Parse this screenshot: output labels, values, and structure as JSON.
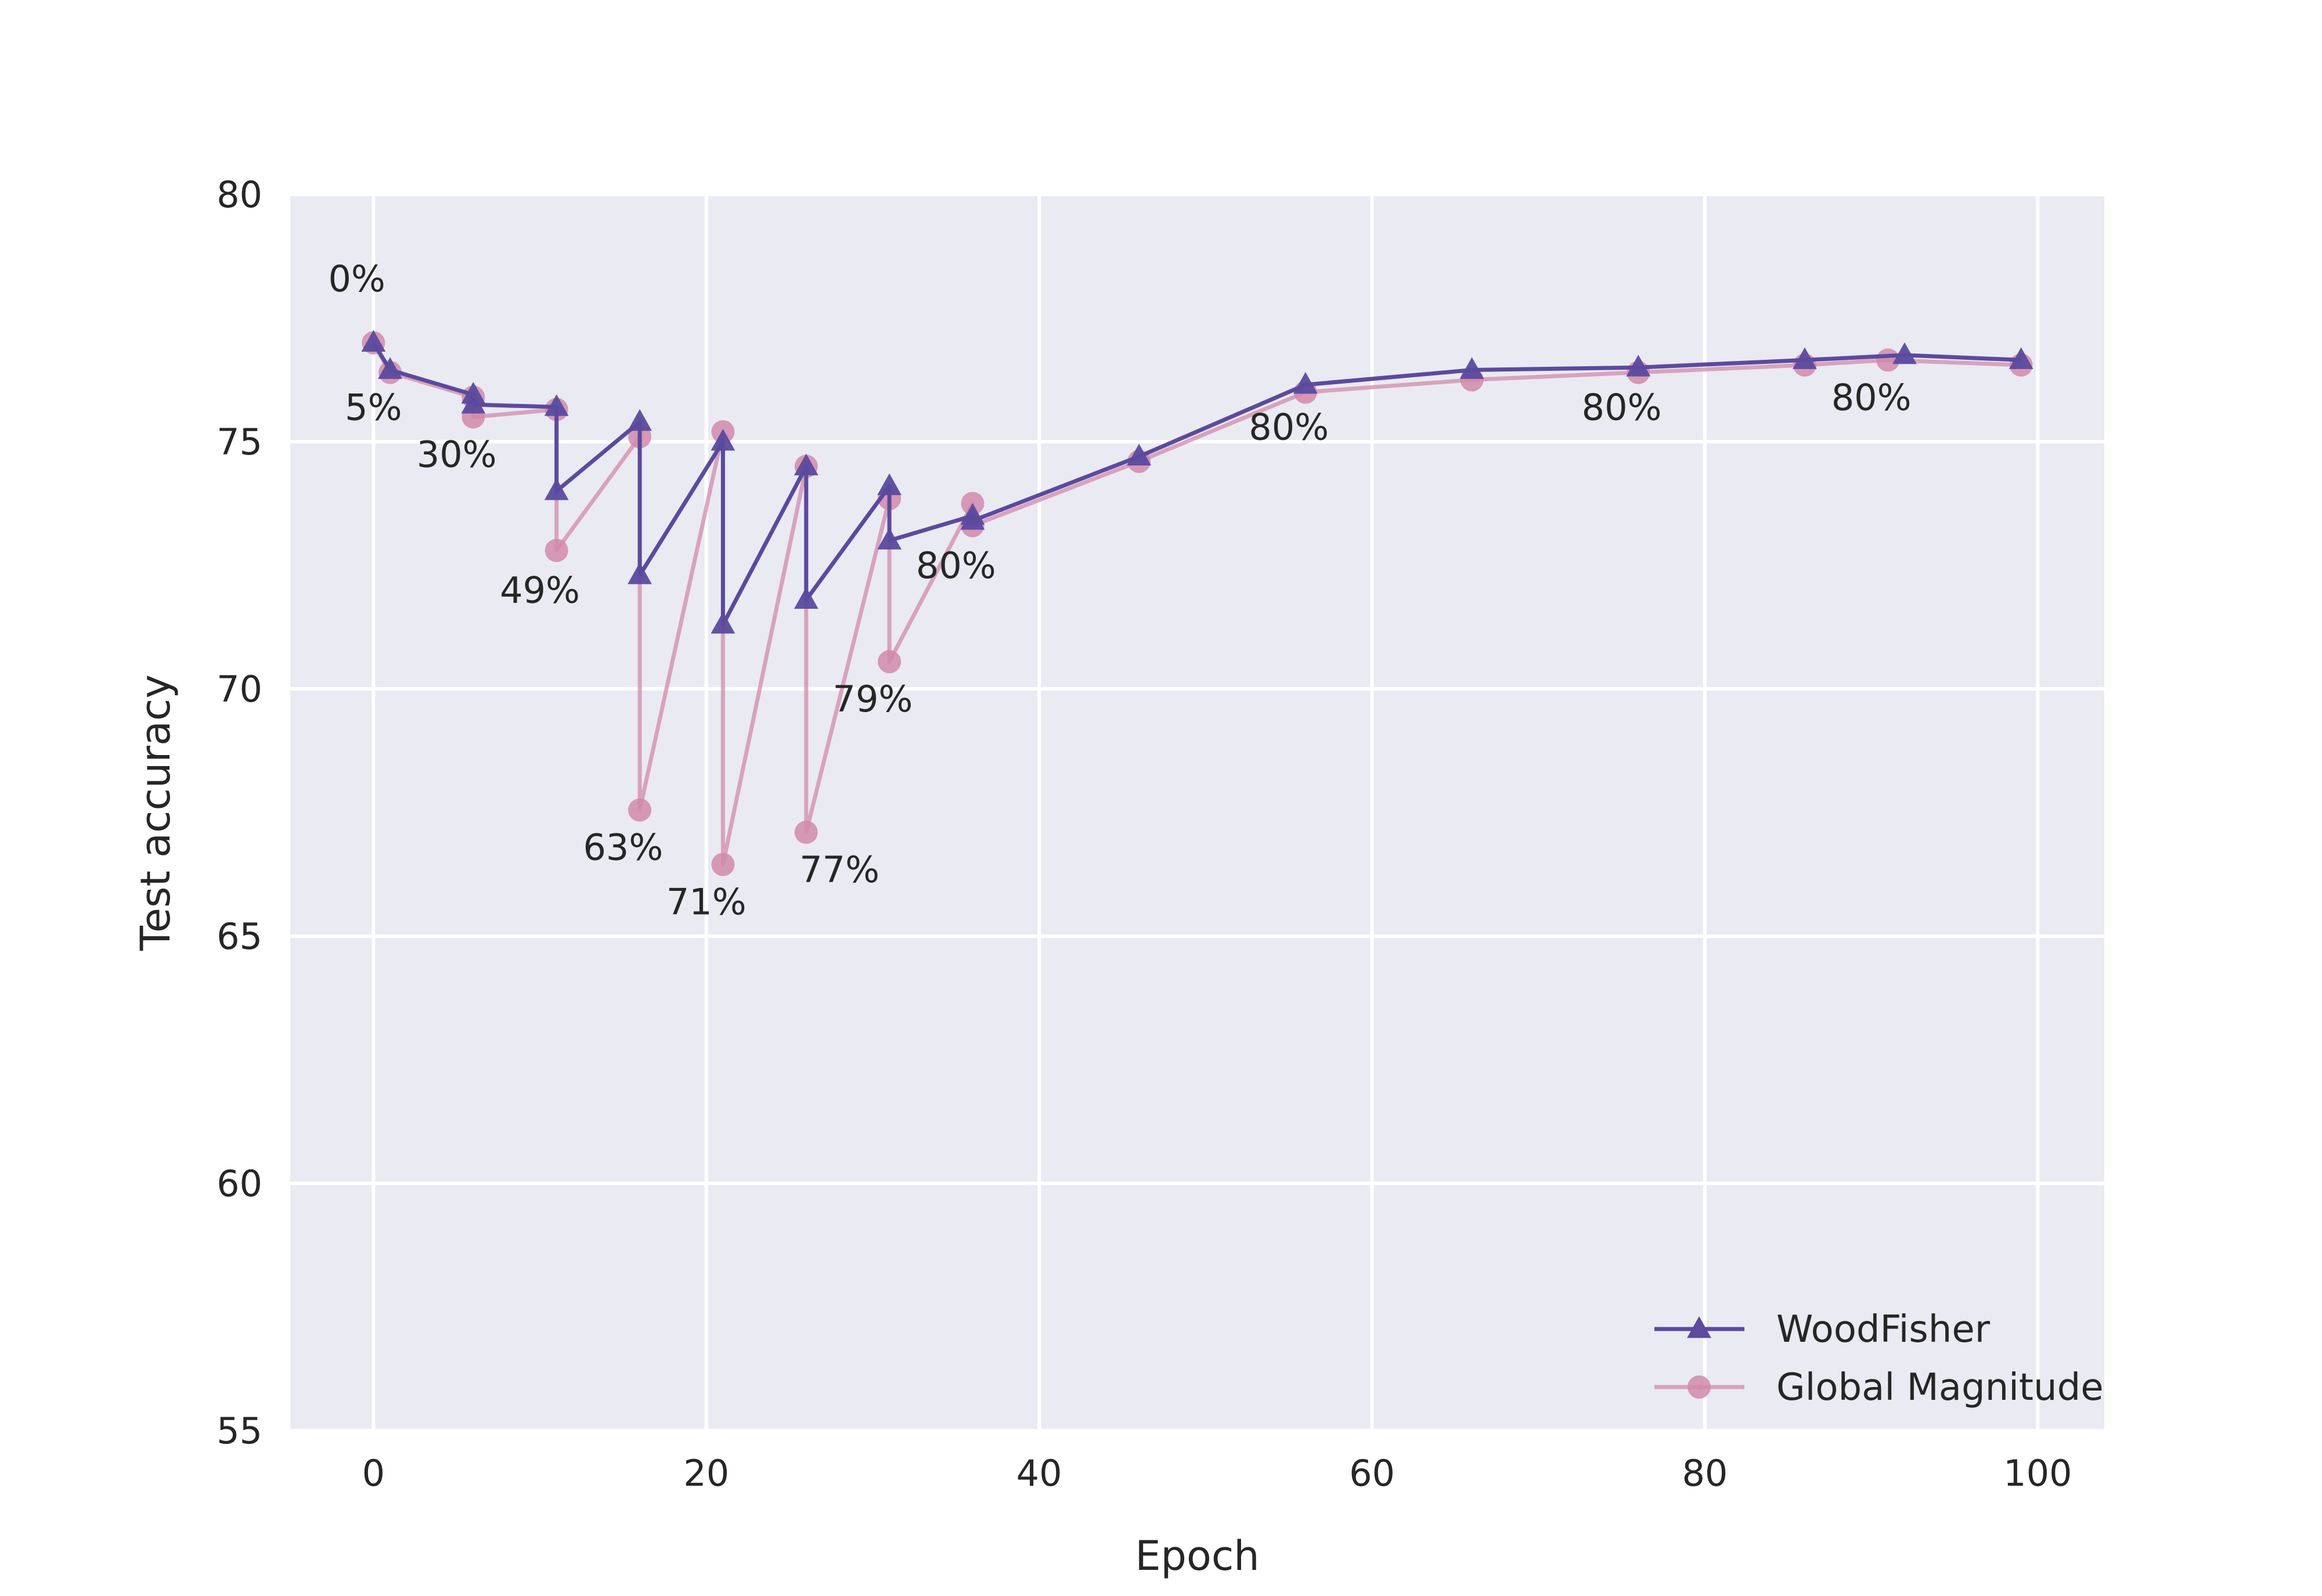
{
  "chart_data": {
    "type": "line",
    "title": "",
    "xlabel": "Epoch",
    "ylabel": "Test accuracy",
    "xlim": [
      -5,
      104
    ],
    "ylim": [
      55,
      80
    ],
    "xticks": [
      0,
      20,
      40,
      60,
      80,
      100
    ],
    "yticks": [
      55,
      60,
      65,
      70,
      75,
      80
    ],
    "grid": true,
    "legend_position": "bottom-right",
    "series": [
      {
        "name": "WoodFisher",
        "color": "#5b4a9e",
        "marker": "triangle",
        "points": [
          [
            0,
            77.0
          ],
          [
            1,
            76.45
          ],
          [
            6,
            75.95
          ],
          [
            6,
            75.75
          ],
          [
            11,
            75.7
          ],
          [
            11,
            74.0
          ],
          [
            16,
            75.4
          ],
          [
            16,
            72.3
          ],
          [
            21,
            75.0
          ],
          [
            21,
            71.3
          ],
          [
            26,
            74.5
          ],
          [
            26,
            71.8
          ],
          [
            31,
            74.1
          ],
          [
            31,
            73.0
          ],
          [
            36,
            73.5
          ],
          [
            36,
            73.4
          ],
          [
            46,
            74.7
          ],
          [
            56,
            76.15
          ],
          [
            66,
            76.45
          ],
          [
            76,
            76.5
          ],
          [
            86,
            76.65
          ],
          [
            92,
            76.75
          ],
          [
            99,
            76.65
          ]
        ]
      },
      {
        "name": "Global Magnitude",
        "color": "#d18aab",
        "marker": "circle",
        "points": [
          [
            0,
            77.0
          ],
          [
            1,
            76.4
          ],
          [
            6,
            75.9
          ],
          [
            6,
            75.5
          ],
          [
            11,
            75.65
          ],
          [
            11,
            72.8
          ],
          [
            16,
            75.1
          ],
          [
            16,
            67.55
          ],
          [
            21,
            75.2
          ],
          [
            21,
            66.45
          ],
          [
            26,
            74.5
          ],
          [
            26,
            67.1
          ],
          [
            31,
            73.85
          ],
          [
            31,
            70.55
          ],
          [
            36,
            73.75
          ],
          [
            36,
            73.3
          ],
          [
            46,
            74.6
          ],
          [
            56,
            76.0
          ],
          [
            66,
            76.25
          ],
          [
            76,
            76.4
          ],
          [
            86,
            76.55
          ],
          [
            91,
            76.65
          ],
          [
            99,
            76.55
          ]
        ]
      }
    ],
    "annotations": [
      {
        "text": "0%",
        "x": -1,
        "y": 78.3
      },
      {
        "text": "5%",
        "x": 0,
        "y": 75.7
      },
      {
        "text": "30%",
        "x": 5,
        "y": 74.75
      },
      {
        "text": "49%",
        "x": 10,
        "y": 72.0
      },
      {
        "text": "63%",
        "x": 15,
        "y": 66.8
      },
      {
        "text": "71%",
        "x": 20,
        "y": 65.7
      },
      {
        "text": "77%",
        "x": 28,
        "y": 66.35
      },
      {
        "text": "79%",
        "x": 30,
        "y": 69.8
      },
      {
        "text": "80%",
        "x": 35,
        "y": 72.5
      },
      {
        "text": "80%",
        "x": 55,
        "y": 75.3
      },
      {
        "text": "80%",
        "x": 75,
        "y": 75.7
      },
      {
        "text": "80%",
        "x": 90,
        "y": 75.9
      }
    ]
  }
}
